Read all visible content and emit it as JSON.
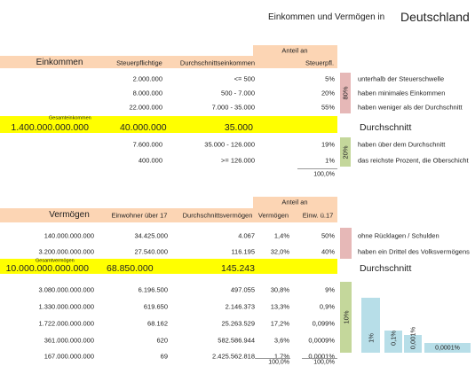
{
  "title": {
    "prefix": "Einkommen und Vermögen in",
    "country": "Deutschland"
  },
  "income": {
    "group_header": "Anteil an",
    "headers": [
      "Einkommen",
      "Steuerpflichtige",
      "Durchschnittseinkommen",
      "Steuerpfl."
    ],
    "rows": [
      [
        "2.000.000",
        "<= 500",
        "5%",
        "unterhalb der Steuerschwelle"
      ],
      [
        "8.000.000",
        "500 - 7.000",
        "20%",
        "haben minimales Einkommen"
      ],
      [
        "22.000.000",
        "7.000 - 35.000",
        "55%",
        "haben weniger als der Durchschnitt"
      ]
    ],
    "lower_share": "80%",
    "total": {
      "caption": "Gesamteinkommen",
      "cells": [
        "1.400.000.000.000",
        "40.000.000",
        "35.000"
      ],
      "note": "Durchschnitt"
    },
    "upper_rows": [
      [
        "7.600.000",
        "35.000 - 126.000",
        "19%",
        "haben über dem Durchschnitt"
      ],
      [
        "400.000",
        ">= 126.000",
        "1%",
        "das reichste Prozent, die Oberschicht"
      ]
    ],
    "upper_share": "20%",
    "sum": "100,0%"
  },
  "wealth": {
    "group_header": "Anteil an",
    "headers": [
      "Vermögen",
      "Einwohner über 17",
      "Durchschnittsvermögen",
      "Vermögen",
      "Einw. ü.17"
    ],
    "rows": [
      [
        "140.000.000.000",
        "34.425.000",
        "4.067",
        "1,4%",
        "50%",
        "ohne Rücklagen / Schulden"
      ],
      [
        "3.200.000.000.000",
        "27.540.000",
        "116.195",
        "32,0%",
        "40%",
        "haben ein Drittel des Volksvermögens"
      ]
    ],
    "total": {
      "caption": "Gesamtvermögen",
      "cells": [
        "10.000.000.000.000",
        "68.850.000",
        "145.243"
      ],
      "note": "Durchschnitt"
    },
    "upper_rows": [
      [
        "3.080.000.000.000",
        "6.196.500",
        "497.055",
        "30,8%",
        "9%"
      ],
      [
        "1.330.000.000.000",
        "619.650",
        "2.146.373",
        "13,3%",
        "0,9%"
      ],
      [
        "1.722.000.000.000",
        "68.162",
        "25.263.529",
        "17,2%",
        "0,099%"
      ],
      [
        "361.000.000.000",
        "620",
        "582.586.944",
        "3,6%",
        "0,0009%"
      ],
      [
        "167.000.000.000",
        "69",
        "2.425.562.818",
        "1,7%",
        "0,0001%"
      ]
    ],
    "upper_share": "10%",
    "bars": [
      "1%",
      "0,1%",
      "0,001%",
      "0,0001%"
    ],
    "sums": [
      "100,0%",
      "100,0%"
    ]
  }
}
